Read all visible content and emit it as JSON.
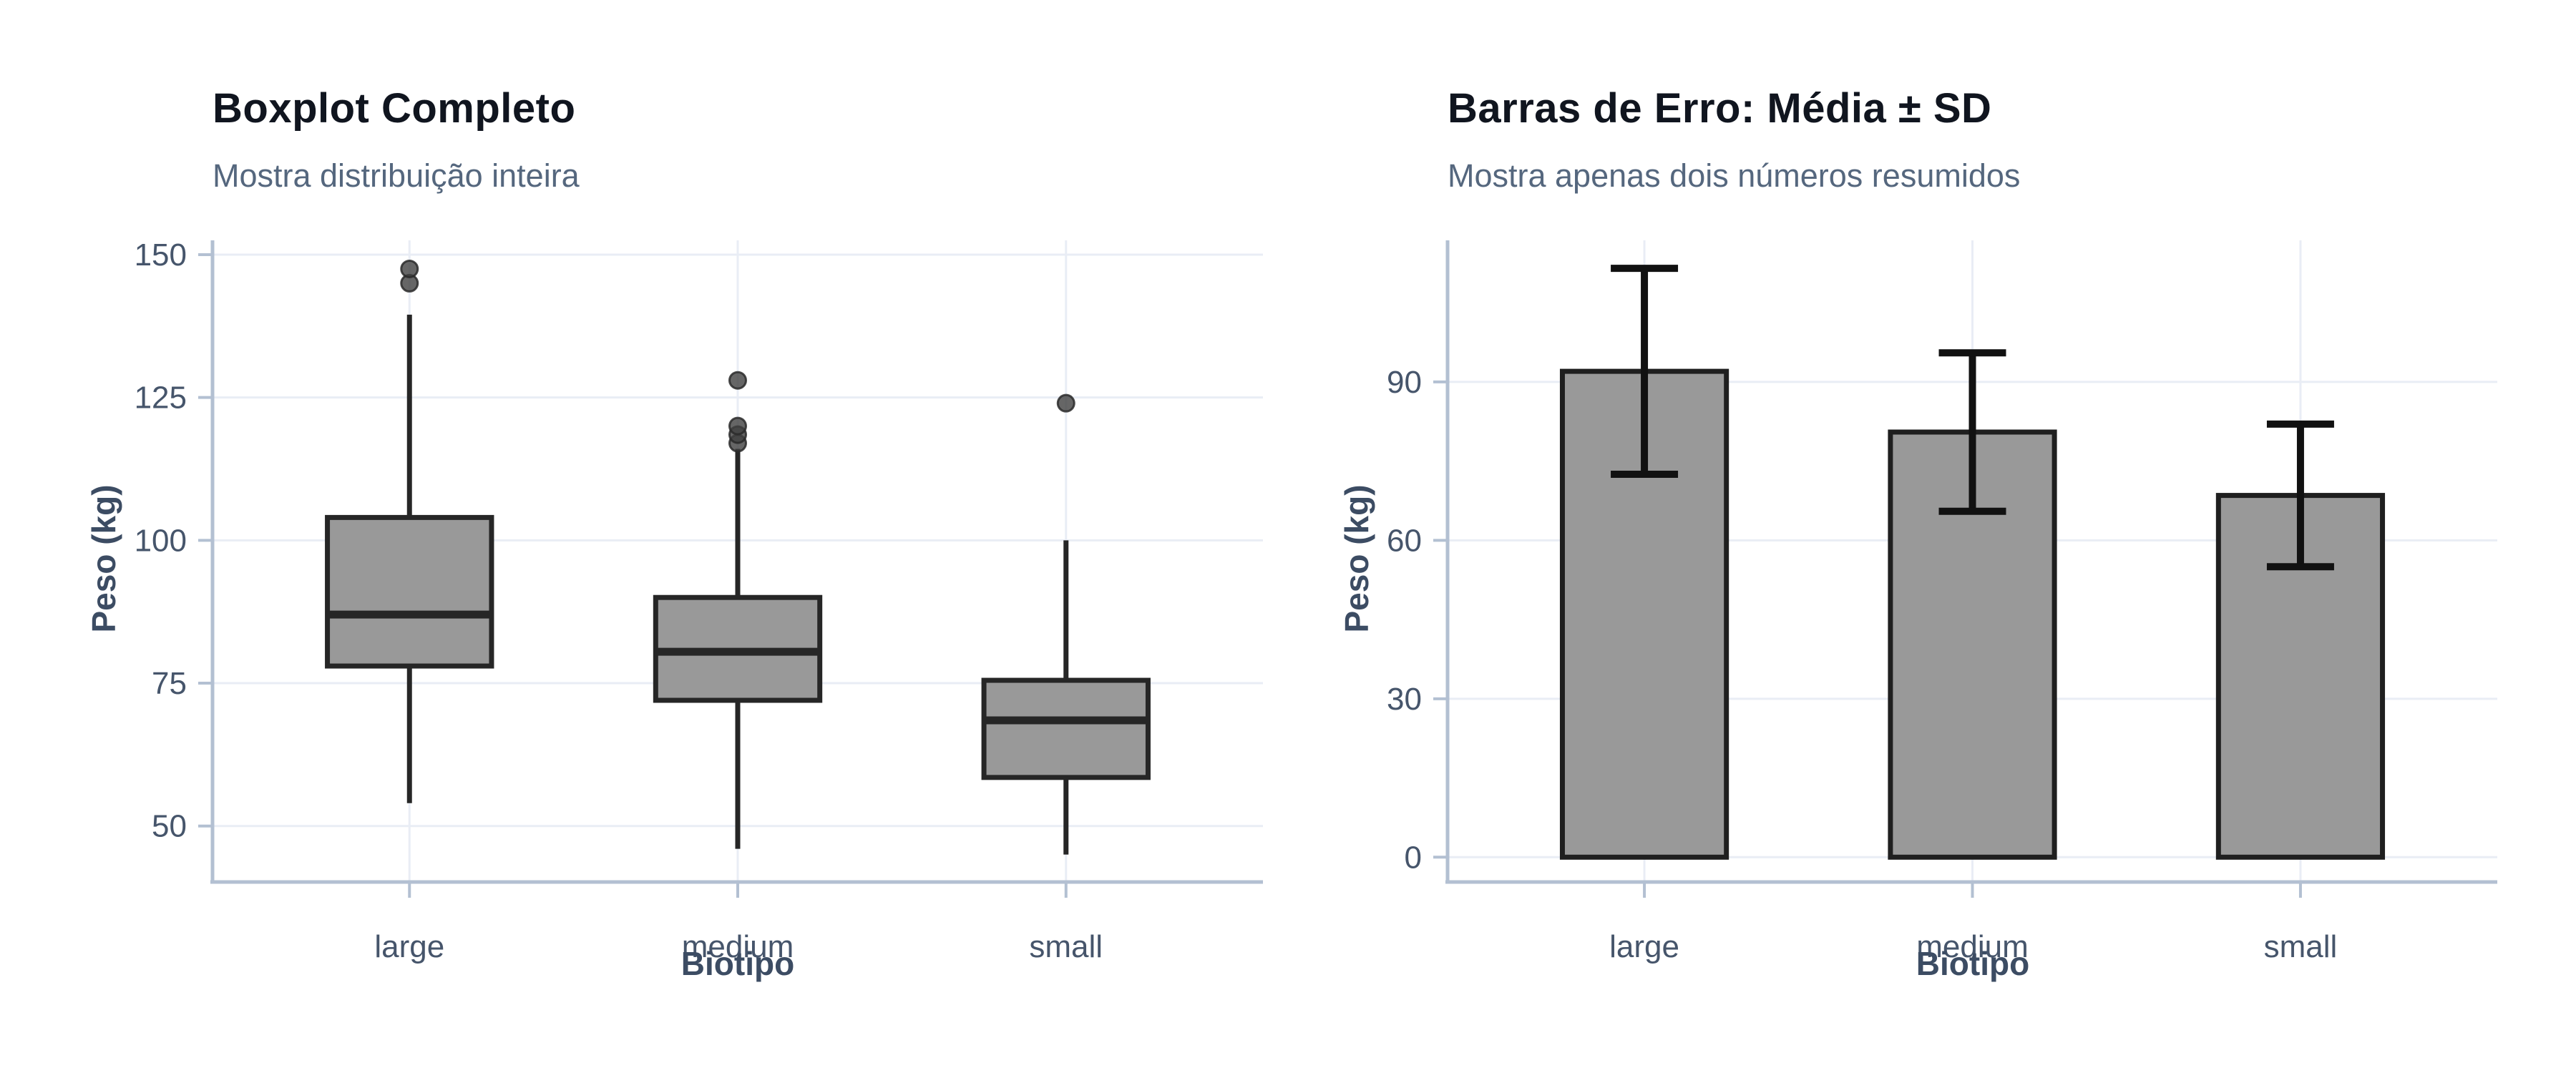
{
  "colors": {
    "background": "#ffffff",
    "box_fill": "#999999",
    "box_stroke": "#262626",
    "bar_fill": "#999999",
    "bar_stroke": "#1f1f1f",
    "error_bar": "#111111",
    "outlier_fill": "#404040",
    "outlier_stroke": "#2a2a2a",
    "gridline": "#e9edf5",
    "axis_line": "#b3c0d2",
    "title_text": "#10151f",
    "subtitle_text": "#55677e",
    "tick_text": "#46556b",
    "axis_title_text": "#3c4c63"
  },
  "chart_data": [
    {
      "type": "boxplot",
      "title": "Boxplot Completo",
      "subtitle": "Mostra distribuição inteira",
      "xlabel": "Biotipo",
      "ylabel": "Peso (kg)",
      "categories": [
        "large",
        "medium",
        "small"
      ],
      "yticks": [
        50,
        75,
        100,
        125,
        150
      ],
      "ylim": [
        40.2,
        152.5
      ],
      "grid": true,
      "legend": false,
      "boxes": [
        {
          "category": "large",
          "whisker_low": 54,
          "q1": 78,
          "median": 87,
          "q3": 104,
          "whisker_high": 139.5,
          "outliers": [
            145,
            147.5
          ]
        },
        {
          "category": "medium",
          "whisker_low": 46,
          "q1": 72,
          "median": 80.5,
          "q3": 90,
          "whisker_high": 116,
          "outliers": [
            117,
            118.5,
            120,
            128
          ]
        },
        {
          "category": "small",
          "whisker_low": 45,
          "q1": 58.5,
          "median": 68.5,
          "q3": 75.5,
          "whisker_high": 100,
          "outliers": [
            124
          ]
        }
      ]
    },
    {
      "type": "bar",
      "title": "Barras de Erro: Média ± SD",
      "subtitle": "Mostra apenas dois números resumidos",
      "xlabel": "Biotipo",
      "ylabel": "Peso (kg)",
      "categories": [
        "large",
        "medium",
        "small"
      ],
      "yticks": [
        0,
        30,
        60,
        90
      ],
      "ylim": [
        -4.7,
        116.8
      ],
      "grid": true,
      "legend": false,
      "bars": [
        {
          "category": "large",
          "mean": 92,
          "sd": 19.5
        },
        {
          "category": "medium",
          "mean": 80.5,
          "sd": 15
        },
        {
          "category": "small",
          "mean": 68.5,
          "sd": 13.5
        }
      ]
    }
  ]
}
